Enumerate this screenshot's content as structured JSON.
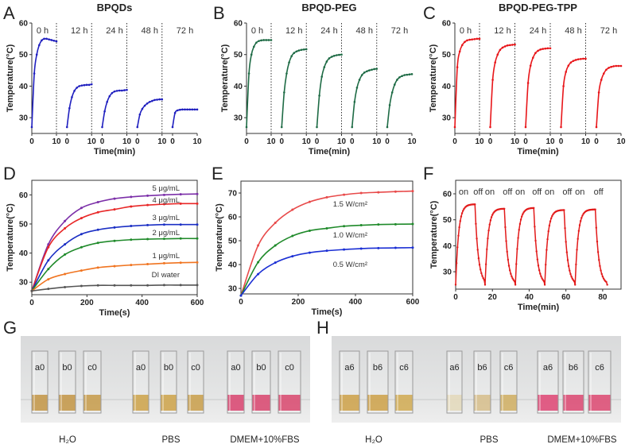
{
  "chart_data": [
    {
      "panel": "A",
      "type": "line",
      "title": "BPQDs",
      "xlabel": "Time(min)",
      "ylabel": "Temperature(°C)",
      "ylim": [
        25,
        60
      ],
      "yticks": [
        30,
        40,
        50,
        60
      ],
      "xticks": [
        "0",
        "10"
      ],
      "color": "#1f1fbf",
      "segments": [
        {
          "label": "0 h",
          "values": [
            27,
            44,
            50,
            53,
            54.5,
            55,
            55,
            54.8,
            54.6,
            54.4,
            54.2
          ]
        },
        {
          "label": "12 h",
          "values": [
            27,
            33,
            36.5,
            38.5,
            39.5,
            40,
            40.2,
            40.3,
            40.4,
            40.4,
            40.6
          ]
        },
        {
          "label": "24 h",
          "values": [
            27,
            32,
            35,
            36.8,
            37.8,
            38.3,
            38.5,
            38.6,
            38.6,
            38.7,
            38.8
          ]
        },
        {
          "label": "48 h",
          "values": [
            27,
            31,
            32.8,
            33.8,
            34.5,
            35,
            35.3,
            35.6,
            35.7,
            35.8,
            35.8
          ]
        },
        {
          "label": "72 h",
          "values": [
            27,
            31.5,
            32.3,
            32.5,
            32.6,
            32.6,
            32.6,
            32.6,
            32.6,
            32.6,
            32.6
          ]
        }
      ]
    },
    {
      "panel": "B",
      "type": "line",
      "title": "BPQD-PEG",
      "xlabel": "Time(min)",
      "ylabel": "Temperature(°C)",
      "ylim": [
        25,
        60
      ],
      "yticks": [
        30,
        40,
        50,
        60
      ],
      "xticks": [
        "0",
        "10"
      ],
      "color": "#1e6b45",
      "segments": [
        {
          "label": "0 h",
          "values": [
            27,
            44,
            50,
            52.5,
            53.8,
            54.3,
            54.5,
            54.6,
            54.6,
            54.6,
            54.6
          ]
        },
        {
          "label": "12 h",
          "values": [
            27,
            38,
            44,
            47.5,
            49.5,
            50.5,
            51,
            51.3,
            51.5,
            51.6,
            51.7
          ]
        },
        {
          "label": "24 h",
          "values": [
            27,
            37,
            43,
            46,
            47.8,
            48.8,
            49.3,
            49.6,
            49.8,
            49.9,
            50
          ]
        },
        {
          "label": "48 h",
          "values": [
            27,
            35,
            39.5,
            42,
            43.5,
            44.3,
            44.7,
            45,
            45.2,
            45.4,
            45.5
          ]
        },
        {
          "label": "72 h",
          "values": [
            27,
            34,
            38,
            40.5,
            42,
            42.8,
            43.2,
            43.5,
            43.6,
            43.7,
            43.8
          ]
        }
      ]
    },
    {
      "panel": "C",
      "type": "line",
      "title": "BPQD-PEG-TPP",
      "xlabel": "Time(min)",
      "ylabel": "Temperature(°C)",
      "ylim": [
        25,
        60
      ],
      "yticks": [
        30,
        40,
        50,
        60
      ],
      "xticks": [
        "0",
        "10"
      ],
      "color": "#e8161a",
      "segments": [
        {
          "label": "0 h",
          "values": [
            27,
            46,
            51,
            53,
            54,
            54.5,
            54.7,
            54.8,
            54.9,
            55,
            55
          ]
        },
        {
          "label": "12 h",
          "values": [
            27,
            42,
            47.5,
            50,
            51.5,
            52.2,
            52.6,
            52.9,
            53,
            53.1,
            53.2
          ]
        },
        {
          "label": "24 h",
          "values": [
            27,
            41,
            46.5,
            49,
            50.5,
            51.2,
            51.6,
            51.8,
            51.9,
            52,
            52
          ]
        },
        {
          "label": "48 h",
          "values": [
            27,
            40,
            44.5,
            46.5,
            47.5,
            48,
            48.3,
            48.5,
            48.6,
            48.7,
            48.7
          ]
        },
        {
          "label": "72 h",
          "values": [
            27,
            38,
            42,
            44,
            45.2,
            45.8,
            46.1,
            46.3,
            46.4,
            46.4,
            46.4
          ]
        }
      ]
    },
    {
      "panel": "D",
      "type": "line",
      "xlabel": "Time(s)",
      "ylabel": "Temperature(°C)",
      "xlim": [
        0,
        600
      ],
      "ylim": [
        25.7,
        65
      ],
      "xticks": [
        0,
        200,
        400,
        600
      ],
      "yticks": [
        30,
        40,
        50,
        60
      ],
      "x": [
        0,
        60,
        120,
        180,
        240,
        300,
        360,
        420,
        480,
        540,
        600
      ],
      "series": [
        {
          "name": "5 μg/mL",
          "color": "#7b2fa8",
          "values": [
            27,
            43,
            51,
            55.5,
            57.5,
            58.7,
            59.3,
            59.7,
            60,
            60.2,
            60.3
          ]
        },
        {
          "name": "4 μg/mL",
          "color": "#e82727",
          "values": [
            27,
            42,
            48.5,
            52,
            54,
            55,
            56,
            56.5,
            56.8,
            57,
            57
          ]
        },
        {
          "name": "3 μg/mL",
          "color": "#1b2fc4",
          "values": [
            27,
            37.5,
            43,
            46.5,
            48,
            48.8,
            49.3,
            49.6,
            49.8,
            49.8,
            49.8
          ]
        },
        {
          "name": "2 μg/mL",
          "color": "#1f8a2a",
          "values": [
            27,
            34.5,
            39.5,
            42,
            43.5,
            44.2,
            44.6,
            44.8,
            44.9,
            45,
            45
          ]
        },
        {
          "name": "1 μg/mL",
          "color": "#f07420",
          "values": [
            27,
            31,
            32.8,
            34,
            35,
            35.5,
            35.9,
            36.2,
            36.5,
            36.7,
            36.8
          ]
        },
        {
          "name": "DI water",
          "color": "#555555",
          "values": [
            27,
            27.7,
            28.3,
            28.7,
            28.9,
            28.9,
            28.9,
            28.9,
            29,
            29,
            29
          ]
        }
      ]
    },
    {
      "panel": "E",
      "type": "line",
      "xlabel": "Time(s)",
      "ylabel": "Temperature(°C)",
      "xlim": [
        0,
        600
      ],
      "ylim": [
        27.7,
        75
      ],
      "xticks": [
        0,
        200,
        400,
        600
      ],
      "yticks": [
        30,
        40,
        50,
        60,
        70
      ],
      "x": [
        0,
        60,
        120,
        180,
        240,
        300,
        360,
        420,
        480,
        540,
        600
      ],
      "series": [
        {
          "name": "1.5 W/cm²",
          "color": "#e84a4a",
          "values": [
            27,
            48,
            57.5,
            63,
            66.3,
            68.2,
            69.3,
            70,
            70.3,
            70.6,
            70.8
          ]
        },
        {
          "name": "1.0 W/cm²",
          "color": "#1f8a2a",
          "values": [
            27,
            41,
            48,
            52,
            54.2,
            55.2,
            56.1,
            56.5,
            56.8,
            56.9,
            57
          ]
        },
        {
          "name": "0.5 W/cm²",
          "color": "#1b2fd4",
          "values": [
            27,
            36,
            40.8,
            43.5,
            45,
            45.8,
            46.3,
            46.7,
            46.9,
            47,
            47.1
          ]
        }
      ]
    },
    {
      "panel": "F",
      "type": "line",
      "xlabel": "Time(min)",
      "ylabel": "Temperature(°C)",
      "xlim": [
        0,
        90
      ],
      "ylim": [
        23.3,
        65.2
      ],
      "xticks": [
        0,
        20,
        40,
        60,
        80
      ],
      "yticks": [
        30,
        40,
        50,
        60
      ],
      "color": "#e21a1a",
      "baseline": 25,
      "end": 82.5,
      "on_label": "on",
      "off_label": "off",
      "cycles": [
        {
          "on": 0,
          "off": 10.5,
          "peak": 56
        },
        {
          "on": 16,
          "off": 26.5,
          "peak": 54.3
        },
        {
          "on": 32.5,
          "off": 42.5,
          "peak": 54.6
        },
        {
          "on": 48.5,
          "off": 59,
          "peak": 53.8
        },
        {
          "on": 65,
          "off": 76,
          "peak": 54
        }
      ]
    }
  ],
  "photos": [
    {
      "panel": "G",
      "groups": [
        {
          "caption": "H₂O",
          "cuvettes": [
            {
              "label": "a0",
              "liquid": "#b9852a"
            },
            {
              "label": "b0",
              "liquid": "#b9852a"
            },
            {
              "label": "c0",
              "liquid": "#bd8c30"
            }
          ]
        },
        {
          "caption": "PBS",
          "cuvettes": [
            {
              "label": "a0",
              "liquid": "#c4952f"
            },
            {
              "label": "b0",
              "liquid": "#c4952f"
            },
            {
              "label": "c0",
              "liquid": "#c08f30"
            }
          ]
        },
        {
          "caption": "DMEM+10%FBS",
          "cuvettes": [
            {
              "label": "a0",
              "liquid": "#d3285a"
            },
            {
              "label": "b0",
              "liquid": "#d12a58"
            },
            {
              "label": "c0",
              "liquid": "#d22c58"
            }
          ]
        }
      ]
    },
    {
      "panel": "H",
      "groups": [
        {
          "caption": "H₂O",
          "cuvettes": [
            {
              "label": "a6",
              "liquid": "#c4932e"
            },
            {
              "label": "b6",
              "liquid": "#c4932e"
            },
            {
              "label": "c6",
              "liquid": "#c99d38"
            }
          ]
        },
        {
          "caption": "PBS",
          "cuvettes": [
            {
              "label": "a6",
              "liquid": "#ddd2b0"
            },
            {
              "label": "b6",
              "liquid": "#cfb47a"
            },
            {
              "label": "c6",
              "liquid": "#c8a24a"
            }
          ]
        },
        {
          "caption": "DMEM+10%FBS",
          "cuvettes": [
            {
              "label": "a6",
              "liquid": "#d82a60"
            },
            {
              "label": "b6",
              "liquid": "#d52c5c"
            },
            {
              "label": "c6",
              "liquid": "#d62e5c"
            }
          ]
        }
      ]
    }
  ]
}
